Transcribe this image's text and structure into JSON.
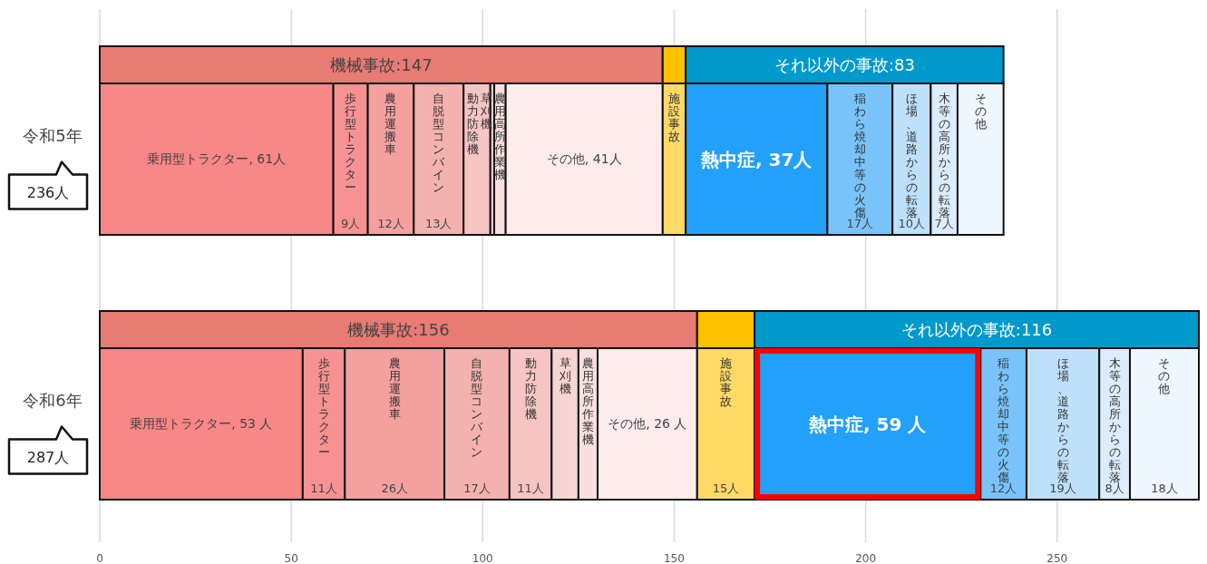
{
  "chart_data": {
    "type": "bar",
    "orientation": "horizontal",
    "stacked": true,
    "categories": [
      null,
      "令和5年",
      null,
      "令和6年"
    ],
    "totals": [
      null,
      "236人",
      null,
      "287人"
    ],
    "xlim": [
      0,
      287
    ],
    "xticks": [
      0,
      50,
      100,
      150,
      200,
      250
    ],
    "grid": "x",
    "series": [
      {
        "color": "#e87b74",
        "values": [
          147,
          null,
          156,
          null
        ],
        "value_labels": [
          "機械事故:147",
          null,
          "機械事故:156",
          null
        ]
      },
      {
        "color": "#ffc000",
        "values": [
          6,
          null,
          15,
          null
        ]
      },
      {
        "color": "#0099cc",
        "values": [
          83,
          null,
          116,
          null
        ],
        "value_labels": [
          "それ以外の事故:83",
          null,
          "それ以外の事故:116",
          null
        ]
      },
      {
        "color": "#f88787",
        "values": [
          null,
          61,
          null,
          53
        ],
        "value_labels": [
          null,
          "乗用型トラクター, 61人",
          null,
          "乗用型トラクター, 53 人"
        ]
      },
      {
        "name": "歩行型トラクター",
        "color": "#f69292",
        "values": [
          null,
          9,
          null,
          11
        ],
        "value_labels": [
          null,
          "9人",
          null,
          "11人"
        ]
      },
      {
        "name": "農用運搬車",
        "color": "#f4a09f",
        "values": [
          null,
          12,
          null,
          26
        ],
        "value_labels": [
          null,
          "12人",
          null,
          "26人"
        ]
      },
      {
        "name": "自脱型コンバイン",
        "color": "#f3b2ae",
        "values": [
          null,
          13,
          null,
          17
        ],
        "value_labels": [
          null,
          "13人",
          null,
          "17人"
        ]
      },
      {
        "name": "動力防除機",
        "color": "#f5c5c3",
        "values": [
          null,
          7,
          null,
          11
        ],
        "value_labels": [
          null,
          null,
          null,
          "11人"
        ]
      },
      {
        "name": "草刈機",
        "color": "#f7d5d3",
        "values": [
          null,
          1,
          null,
          7
        ]
      },
      {
        "name": "農用高所作業機",
        "color": "#f9e0df",
        "values": [
          null,
          3,
          null,
          5
        ]
      },
      {
        "color": "#fcecec",
        "values": [
          null,
          41,
          null,
          26
        ],
        "value_labels": [
          null,
          "その他, 41人",
          null,
          "その他, 26 人"
        ]
      },
      {
        "name": "施設事故",
        "color": "#ffd966",
        "values": [
          null,
          6,
          null,
          15
        ],
        "value_labels": [
          null,
          null,
          null,
          "15人"
        ]
      },
      {
        "color": "#22a0fa",
        "values": [
          null,
          37,
          null,
          59
        ],
        "value_labels": [
          null,
          "熱中症, 37人",
          null,
          "熱中症, 59 人"
        ]
      },
      {
        "name": "稲わら焼却中等の火傷",
        "color": "#78c4fa",
        "values": [
          null,
          17,
          null,
          12
        ],
        "value_labels": [
          null,
          "17人",
          null,
          "12人"
        ]
      },
      {
        "name": "ほ場、道路からの転落",
        "color": "#bde0fb",
        "values": [
          null,
          10,
          null,
          19
        ],
        "value_labels": [
          null,
          "10人",
          null,
          "19人"
        ]
      },
      {
        "name": "木等の高所からの転落",
        "color": "#dbedfc",
        "values": [
          null,
          7,
          null,
          8
        ],
        "value_labels": [
          null,
          "7人",
          null,
          "8人"
        ]
      },
      {
        "name": "その他",
        "color": "#eef6fe",
        "values": [
          null,
          12,
          null,
          18
        ],
        "value_labels": [
          null,
          null,
          null,
          "18人"
        ]
      }
    ]
  }
}
